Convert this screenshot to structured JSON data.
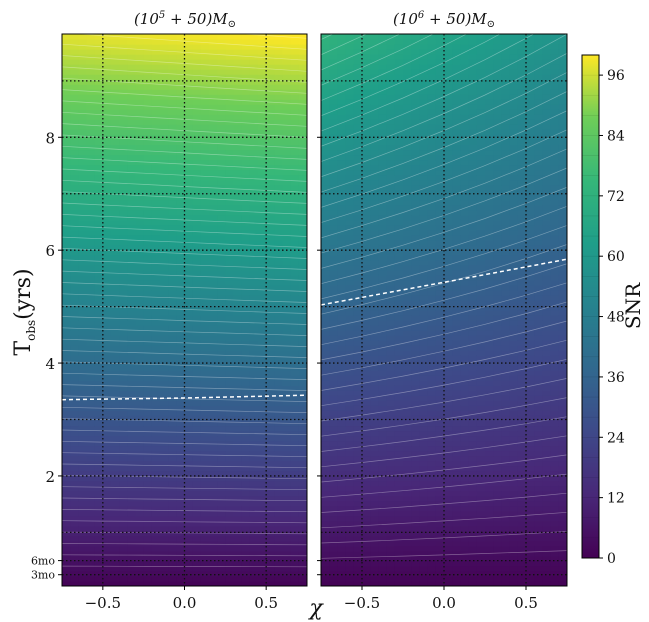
{
  "chart_data": {
    "type": "heatmap",
    "ylabel": "T",
    "ylabel_sub": "obs",
    "ylabel_units": "(yrs)",
    "xlabel": "χ",
    "colorbar_label": "SNR",
    "colorbar_ticks": [
      0,
      12,
      24,
      36,
      48,
      60,
      72,
      84,
      96
    ],
    "colorbar_range": [
      0,
      100
    ],
    "colormap": "viridis",
    "xlim": [
      -0.75,
      0.75
    ],
    "ylim": [
      0.05,
      9.83
    ],
    "x_ticks": [
      -0.5,
      0.0,
      0.5
    ],
    "x_tick_labels": [
      "−0.5",
      "0.0",
      "0.5"
    ],
    "y_ticks": [
      0.25,
      0.5,
      2,
      4,
      6,
      8
    ],
    "y_tick_labels": [
      "3mo",
      "6mo",
      "2",
      "4",
      "6",
      "8"
    ],
    "grid": {
      "x": [
        -0.5,
        0.0,
        0.5
      ],
      "y": [
        0.25,
        0.5,
        1,
        2,
        3,
        4,
        5,
        6,
        7,
        8,
        9
      ],
      "style": "dotted"
    },
    "panels": [
      {
        "title_base": "(10",
        "title_exp": "5",
        "title_rest": " + 50)M",
        "title_sub": "⊙",
        "snr_scale": 10.1,
        "snr_slope": 0.02,
        "threshold_snr": 34,
        "threshold_curve": {
          "x": [
            -0.75,
            0.0,
            0.75
          ],
          "y": [
            3.35,
            3.38,
            3.43
          ]
        }
      },
      {
        "title_base": "(10",
        "title_exp": "6",
        "title_rest": " + 50)M",
        "title_sub": "⊙",
        "snr_scale": 6.65,
        "snr_slope": -0.15,
        "threshold_snr": 34,
        "threshold_curve": {
          "x": [
            -0.75,
            0.0,
            0.75
          ],
          "y": [
            5.03,
            5.43,
            5.84
          ]
        }
      }
    ]
  }
}
